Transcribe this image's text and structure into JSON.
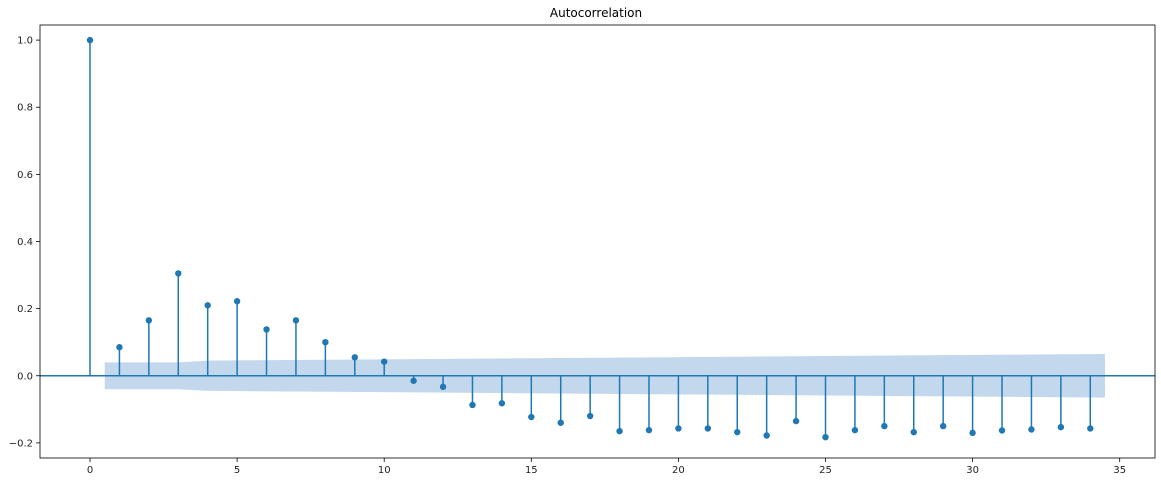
{
  "chart_data": {
    "type": "stem",
    "title": "Autocorrelation",
    "xlabel": "",
    "ylabel": "",
    "xlim": [
      -1.7,
      36.2
    ],
    "ylim": [
      -0.245,
      1.045
    ],
    "xticks": [
      0,
      5,
      10,
      15,
      20,
      25,
      30,
      35
    ],
    "yticks": [
      -0.2,
      0.0,
      0.2,
      0.4,
      0.6,
      0.8,
      1.0
    ],
    "xtick_labels": [
      "0",
      "5",
      "10",
      "15",
      "20",
      "25",
      "30",
      "35"
    ],
    "ytick_labels": [
      "−0.2",
      "0.0",
      "0.2",
      "0.4",
      "0.6",
      "0.8",
      "1.0"
    ],
    "grid": false,
    "series": [
      {
        "x": [
          0,
          1,
          2,
          3,
          4,
          5,
          6,
          7,
          8,
          9,
          10,
          11,
          12,
          13,
          14,
          15,
          16,
          17,
          18,
          19,
          20,
          21,
          22,
          23,
          24,
          25,
          26,
          27,
          28,
          29,
          30,
          31,
          32,
          33,
          34
        ],
        "values": [
          1.0,
          0.085,
          0.165,
          0.305,
          0.21,
          0.222,
          0.138,
          0.165,
          0.1,
          0.055,
          0.042,
          -0.015,
          -0.033,
          -0.087,
          -0.082,
          -0.123,
          -0.14,
          -0.12,
          -0.165,
          -0.162,
          -0.157,
          -0.157,
          -0.168,
          -0.178,
          -0.135,
          -0.183,
          -0.162,
          -0.15,
          -0.168,
          -0.15,
          -0.17,
          -0.163,
          -0.16,
          -0.153,
          -0.157
        ]
      }
    ],
    "confidence_band": {
      "x": [
        0.5,
        3,
        4,
        34.5
      ],
      "upper": [
        0.04,
        0.04,
        0.045,
        0.065
      ],
      "lower": [
        -0.04,
        -0.04,
        -0.045,
        -0.065
      ]
    },
    "colors": {
      "stem": "#1f77b4",
      "band": "#c3d8ec",
      "axis": "#000000"
    }
  }
}
